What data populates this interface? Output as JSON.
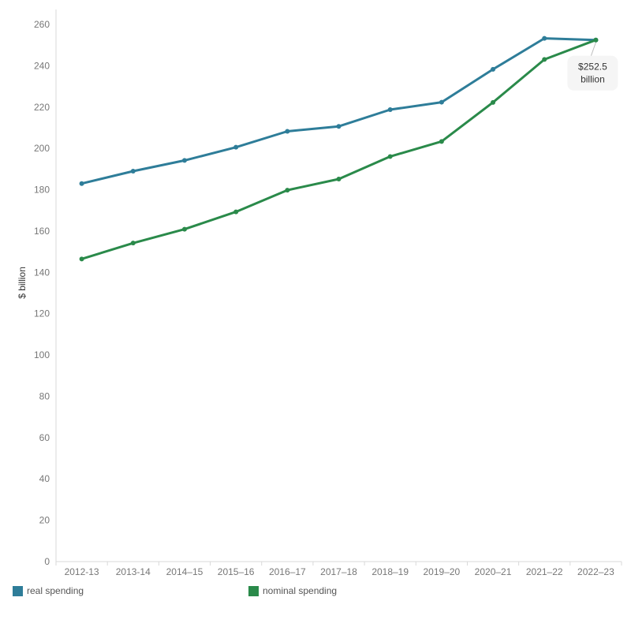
{
  "chart_data": {
    "type": "line",
    "title": "",
    "xlabel": "",
    "ylabel": "$ billion",
    "categories": [
      "2012-13",
      "2013-14",
      "2014–15",
      "2015–16",
      "2016–17",
      "2017–18",
      "2018–19",
      "2019–20",
      "2020–21",
      "2021–22",
      "2022–23"
    ],
    "yticks": [
      0,
      20,
      40,
      60,
      80,
      100,
      120,
      140,
      160,
      180,
      200,
      220,
      240,
      260
    ],
    "ylim": [
      0,
      265
    ],
    "grid": false,
    "legend_position": "bottom",
    "series": [
      {
        "name": "real spending",
        "color": "#2e7d99",
        "values": [
          183.0,
          189.0,
          194.2,
          200.6,
          208.3,
          210.7,
          218.8,
          222.4,
          238.3,
          253.3,
          252.5
        ]
      },
      {
        "name": "nominal spending",
        "color": "#2a8a4a",
        "values": [
          146.5,
          154.2,
          160.9,
          169.3,
          179.8,
          185.2,
          196.1,
          203.4,
          222.3,
          243.1,
          252.5
        ]
      }
    ],
    "annotation": {
      "line1": "$252.5",
      "line2": "billion"
    }
  }
}
